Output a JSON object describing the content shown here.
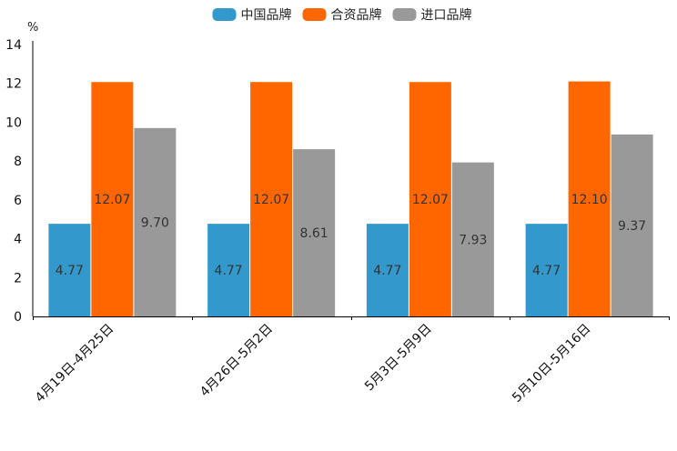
{
  "chart_data": {
    "type": "bar",
    "title": "",
    "xlabel": "",
    "ylabel": "%",
    "ylim": [
      0,
      14
    ],
    "yticks": [
      0,
      2,
      4,
      6,
      8,
      10,
      12,
      14
    ],
    "grid": false,
    "legend_position": "top-center",
    "categories": [
      "4月19日-4月25日",
      "4月26日-5月2日",
      "5月3日-5月9日",
      "5月10日-5月16日"
    ],
    "series": [
      {
        "name": "中国品牌",
        "color": "#3399cc",
        "values": [
          4.77,
          4.77,
          4.77,
          4.77
        ],
        "labels": [
          "4.77",
          "4.77",
          "4.77",
          "4.77"
        ]
      },
      {
        "name": "合资品牌",
        "color": "#ff6600",
        "values": [
          12.07,
          12.07,
          12.07,
          12.1
        ],
        "labels": [
          "12.07",
          "12.07",
          "12.07",
          "12.10"
        ]
      },
      {
        "name": "进口品牌",
        "color": "#999999",
        "values": [
          9.7,
          8.61,
          7.93,
          9.37
        ],
        "labels": [
          "9.70",
          "8.61",
          "7.93",
          "9.37"
        ]
      }
    ]
  }
}
